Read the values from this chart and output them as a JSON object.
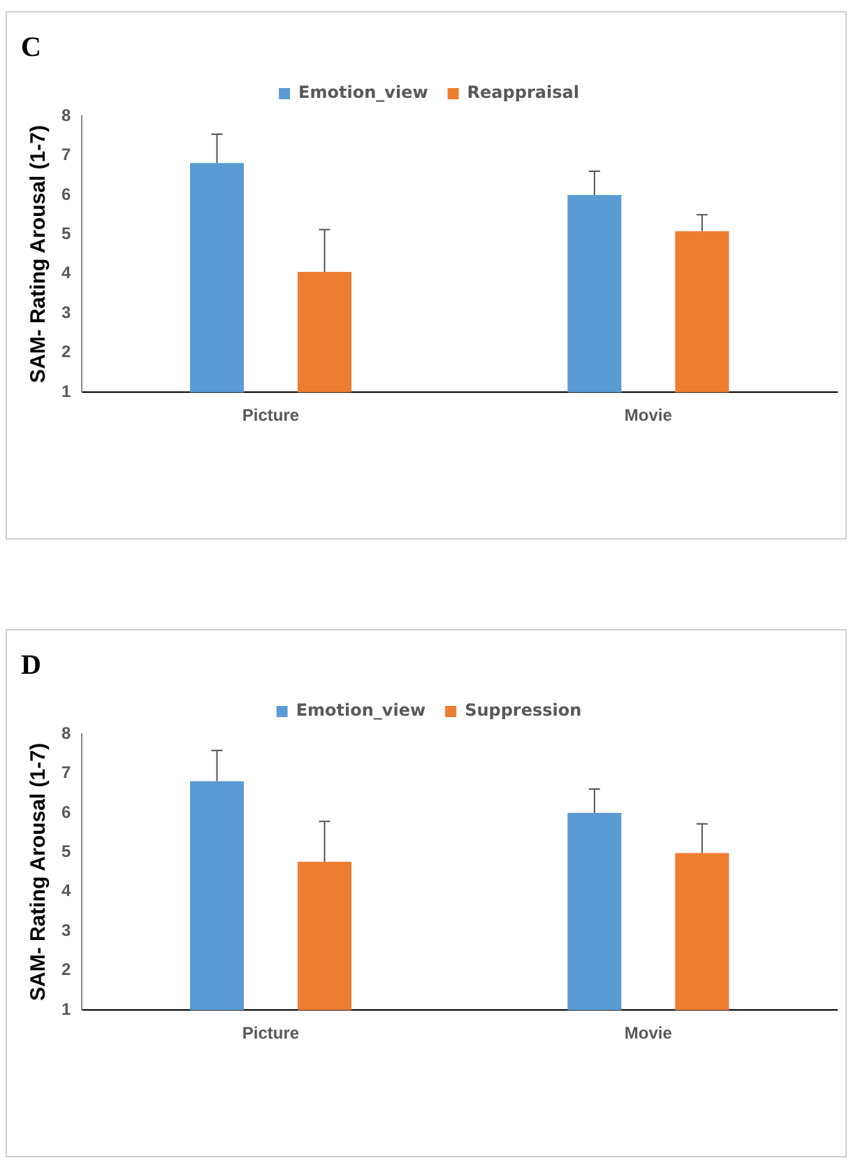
{
  "chart_data": [
    {
      "type": "bar",
      "title": "C",
      "ylabel": "SAM- Rating Arousal (1-7)",
      "categories": [
        "Picture",
        "Movie"
      ],
      "series": [
        {
          "name": "Emotion_view",
          "color": "#5b9bd5",
          "values": [
            6.81,
            6.0
          ],
          "errors": [
            [
              6.81,
              7.54
            ],
            [
              6.0,
              6.6
            ]
          ]
        },
        {
          "name": "Reappraisal",
          "color": "#ed7d31",
          "values": [
            4.05,
            5.08
          ],
          "errors": [
            [
              4.05,
              5.12
            ],
            [
              5.08,
              5.5
            ]
          ]
        }
      ],
      "ylim": [
        1,
        8
      ],
      "yticks": [
        1,
        2,
        3,
        4,
        5,
        6,
        7,
        8
      ],
      "grid": false,
      "legend": "top"
    },
    {
      "type": "bar",
      "title": "D",
      "ylabel": "SAM- Rating Arousal (1-7)",
      "categories": [
        "Picture",
        "Movie"
      ],
      "series": [
        {
          "name": "Emotion_view",
          "color": "#5b9bd5",
          "values": [
            6.8,
            6.0
          ],
          "errors": [
            [
              6.8,
              7.58
            ],
            [
              6.0,
              6.6
            ]
          ]
        },
        {
          "name": "Suppression",
          "color": "#ed7d31",
          "values": [
            4.76,
            4.98
          ],
          "errors": [
            [
              4.76,
              5.78
            ],
            [
              4.98,
              5.72
            ]
          ]
        }
      ],
      "ylim": [
        1,
        8
      ],
      "yticks": [
        1,
        2,
        3,
        4,
        5,
        6,
        7,
        8
      ],
      "grid": false,
      "legend": "top"
    }
  ]
}
